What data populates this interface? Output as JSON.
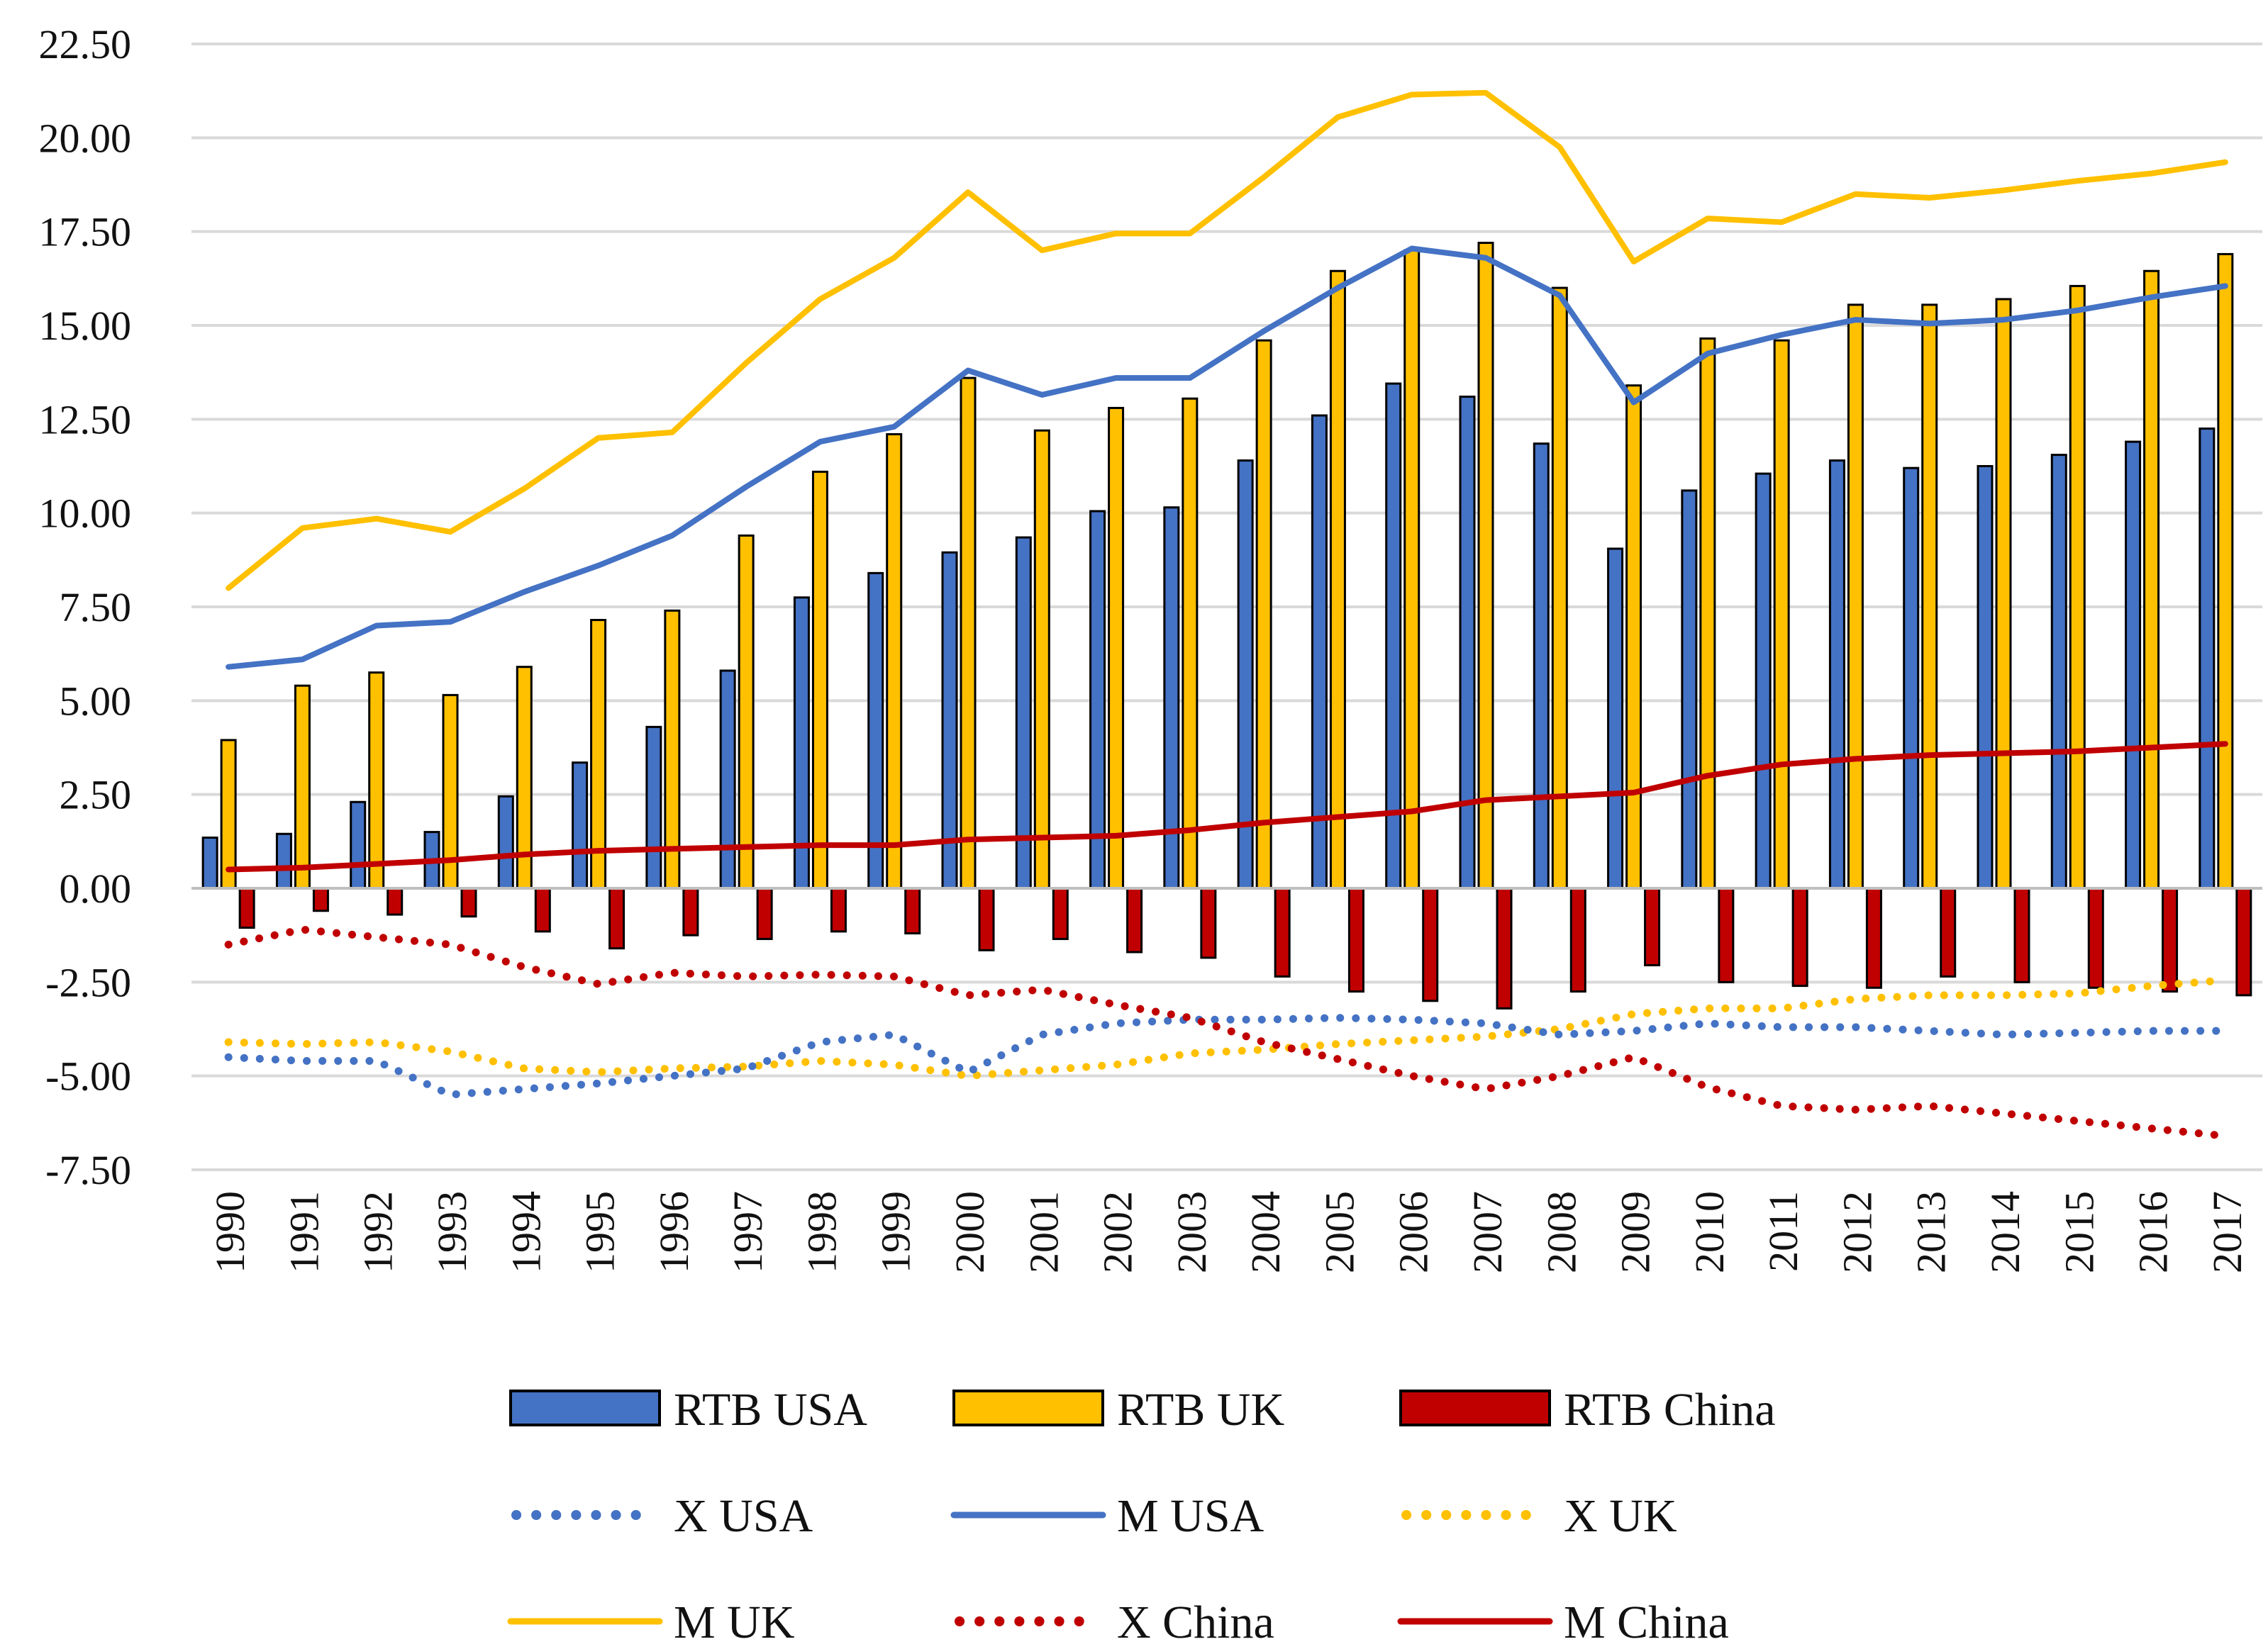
{
  "chart_data": {
    "type": "bar",
    "title": "",
    "xlabel": "",
    "ylabel": "",
    "ylim": [
      -7.5,
      22.5
    ],
    "yticks": [
      "22.50",
      "20.00",
      "17.50",
      "15.00",
      "12.50",
      "10.00",
      "7.50",
      "5.00",
      "2.50",
      "0.00",
      "-2.50",
      "-5.00",
      "-7.50"
    ],
    "grid": true,
    "legend_position": "bottom",
    "categories": [
      "1990",
      "1991",
      "1992",
      "1993",
      "1994",
      "1995",
      "1996",
      "1997",
      "1998",
      "1999",
      "2000",
      "2001",
      "2002",
      "2003",
      "2004",
      "2005",
      "2006",
      "2007",
      "2008",
      "2009",
      "2010",
      "2011",
      "2012",
      "2013",
      "2014",
      "2015",
      "2016",
      "2017"
    ],
    "bar_series": [
      {
        "name": "RTB USA",
        "color": "#4472c4",
        "values": [
          1.35,
          1.45,
          2.3,
          1.5,
          2.45,
          3.35,
          4.3,
          5.8,
          7.75,
          8.4,
          8.95,
          9.35,
          10.05,
          10.15,
          11.4,
          12.6,
          13.45,
          13.1,
          11.85,
          9.05,
          10.6,
          11.05,
          11.4,
          11.2,
          11.25,
          11.55,
          11.9,
          12.25
        ]
      },
      {
        "name": "RTB UK",
        "color": "#ffc000",
        "values": [
          3.95,
          5.4,
          5.75,
          5.15,
          5.9,
          7.15,
          7.4,
          9.4,
          11.1,
          12.1,
          13.6,
          12.2,
          12.8,
          13.05,
          14.6,
          16.45,
          17.0,
          17.2,
          16.0,
          13.4,
          14.65,
          14.6,
          15.55,
          15.55,
          15.7,
          16.05,
          16.45,
          16.9
        ]
      },
      {
        "name": "RTB China",
        "color": "#c00000",
        "values": [
          -1.05,
          -0.6,
          -0.7,
          -0.75,
          -1.15,
          -1.6,
          -1.25,
          -1.35,
          -1.15,
          -1.2,
          -1.65,
          -1.35,
          -1.7,
          -1.85,
          -2.35,
          -2.75,
          -3.0,
          -3.2,
          -2.75,
          -2.05,
          -2.5,
          -2.6,
          -2.65,
          -2.35,
          -2.5,
          -2.65,
          -2.75,
          -2.85
        ]
      }
    ],
    "line_series": [
      {
        "name": "X USA",
        "color": "#4472c4",
        "style": "dotted",
        "values": [
          -4.5,
          -4.6,
          -4.6,
          -5.5,
          -5.35,
          -5.2,
          -5.0,
          -4.8,
          -4.1,
          -3.9,
          -4.9,
          -3.9,
          -3.6,
          -3.5,
          -3.5,
          -3.45,
          -3.5,
          -3.6,
          -3.9,
          -3.8,
          -3.6,
          -3.7,
          -3.7,
          -3.8,
          -3.9,
          -3.85,
          -3.8,
          -3.8
        ]
      },
      {
        "name": "M USA",
        "color": "#4472c4",
        "style": "solid",
        "values": [
          5.9,
          6.1,
          7.0,
          7.1,
          7.9,
          8.6,
          9.4,
          10.7,
          11.9,
          12.3,
          13.8,
          13.15,
          13.6,
          13.6,
          14.85,
          16.0,
          17.05,
          16.8,
          15.8,
          12.95,
          14.25,
          14.75,
          15.15,
          15.05,
          15.15,
          15.4,
          15.75,
          16.05
        ]
      },
      {
        "name": "X UK",
        "color": "#ffc000",
        "style": "dotted",
        "values": [
          -4.1,
          -4.15,
          -4.1,
          -4.35,
          -4.8,
          -4.9,
          -4.8,
          -4.75,
          -4.6,
          -4.7,
          -5.0,
          -4.85,
          -4.7,
          -4.4,
          -4.3,
          -4.15,
          -4.05,
          -3.95,
          -3.75,
          -3.35,
          -3.2,
          -3.2,
          -2.95,
          -2.85,
          -2.85,
          -2.8,
          -2.6,
          -2.45
        ]
      },
      {
        "name": "M UK",
        "color": "#ffc000",
        "style": "solid",
        "values": [
          8.0,
          9.6,
          9.85,
          9.5,
          10.65,
          12.0,
          12.15,
          14.0,
          15.7,
          16.8,
          18.55,
          17.0,
          17.45,
          17.45,
          18.95,
          20.55,
          21.15,
          21.2,
          19.75,
          16.7,
          17.85,
          17.75,
          18.5,
          18.4,
          18.6,
          18.85,
          19.05,
          19.35
        ]
      },
      {
        "name": "X China",
        "color": "#c00000",
        "style": "dotted",
        "values": [
          -1.5,
          -1.1,
          -1.3,
          -1.5,
          -2.1,
          -2.55,
          -2.25,
          -2.35,
          -2.3,
          -2.35,
          -2.85,
          -2.7,
          -3.1,
          -3.45,
          -4.1,
          -4.55,
          -5.0,
          -5.35,
          -5.0,
          -4.5,
          -5.3,
          -5.8,
          -5.9,
          -5.8,
          -6.0,
          -6.2,
          -6.4,
          -6.6
        ]
      },
      {
        "name": "M China",
        "color": "#c00000",
        "style": "solid",
        "values": [
          0.5,
          0.55,
          0.65,
          0.75,
          0.9,
          1.0,
          1.05,
          1.1,
          1.15,
          1.15,
          1.3,
          1.35,
          1.4,
          1.55,
          1.75,
          1.9,
          2.05,
          2.35,
          2.45,
          2.55,
          3.0,
          3.3,
          3.45,
          3.55,
          3.6,
          3.65,
          3.75,
          3.85
        ]
      }
    ],
    "legend": [
      {
        "name": "RTB USA",
        "marker": "bar",
        "color": "#4472c4"
      },
      {
        "name": "RTB UK",
        "marker": "bar",
        "color": "#ffc000"
      },
      {
        "name": "RTB China",
        "marker": "bar",
        "color": "#c00000"
      },
      {
        "name": "X USA",
        "marker": "dotted",
        "color": "#4472c4"
      },
      {
        "name": "M USA",
        "marker": "solid",
        "color": "#4472c4"
      },
      {
        "name": "X UK",
        "marker": "dotted",
        "color": "#ffc000"
      },
      {
        "name": "M UK",
        "marker": "solid",
        "color": "#ffc000"
      },
      {
        "name": "X China",
        "marker": "dotted",
        "color": "#c00000"
      },
      {
        "name": "M China",
        "marker": "solid",
        "color": "#c00000"
      }
    ]
  }
}
